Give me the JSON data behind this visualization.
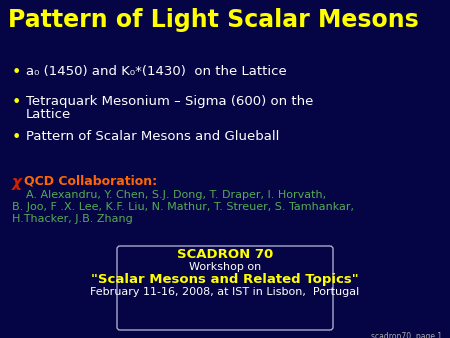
{
  "bg_color": "#050545",
  "title": "Pattern of Light Scalar Mesons",
  "title_color": "#ffff00",
  "title_fontsize": 17,
  "bullet_color": "#ffffff",
  "bullet_dot_color": "#ffff00",
  "bullet1": "a₀ (1450) and K₀*(1430)  on the Lattice",
  "bullet2_line1": "Tetraquark Mesonium – Sigma (600) on the",
  "bullet2_line2": "Lattice",
  "bullet3": "Pattern of Scalar Mesons and Glueball",
  "bullet_fontsize": 9.5,
  "collab_chi": "χ",
  "collab_chi_color": "#cc2200",
  "collab_qcd": "QCD Collaboration:",
  "collab_qcd_color": "#ff6600",
  "collab_names_color": "#55aa55",
  "collab_name1": "    A. Alexandru, Y. Chen, S.J. Dong, T. Draper, I. Horvath,",
  "collab_name2": "B. Joo, F .X. Lee, K.F. Liu, N. Mathur, T. Streuer, S. Tamhankar,",
  "collab_name3": "H.Thacker, J.B. Zhang",
  "collab_fontsize": 8,
  "scadron_title": "SCADRON 70",
  "scadron_title_color": "#ffff00",
  "scadron_title_fontsize": 9.5,
  "workshop_line": "Workshop on",
  "workshop_color": "#ffffff",
  "workshop_fontsize": 8,
  "topics_line": "\"Scalar Mesons and Related Topics\"",
  "topics_color": "#ffff00",
  "topics_fontsize": 9.5,
  "date_line": "February 11-16, 2008, at IST in Lisbon,  Portugal",
  "date_color": "#ffffff",
  "date_fontsize": 8,
  "page_label": "scadron70  page 1",
  "page_color": "#aaaaaa",
  "page_fontsize": 5.5
}
